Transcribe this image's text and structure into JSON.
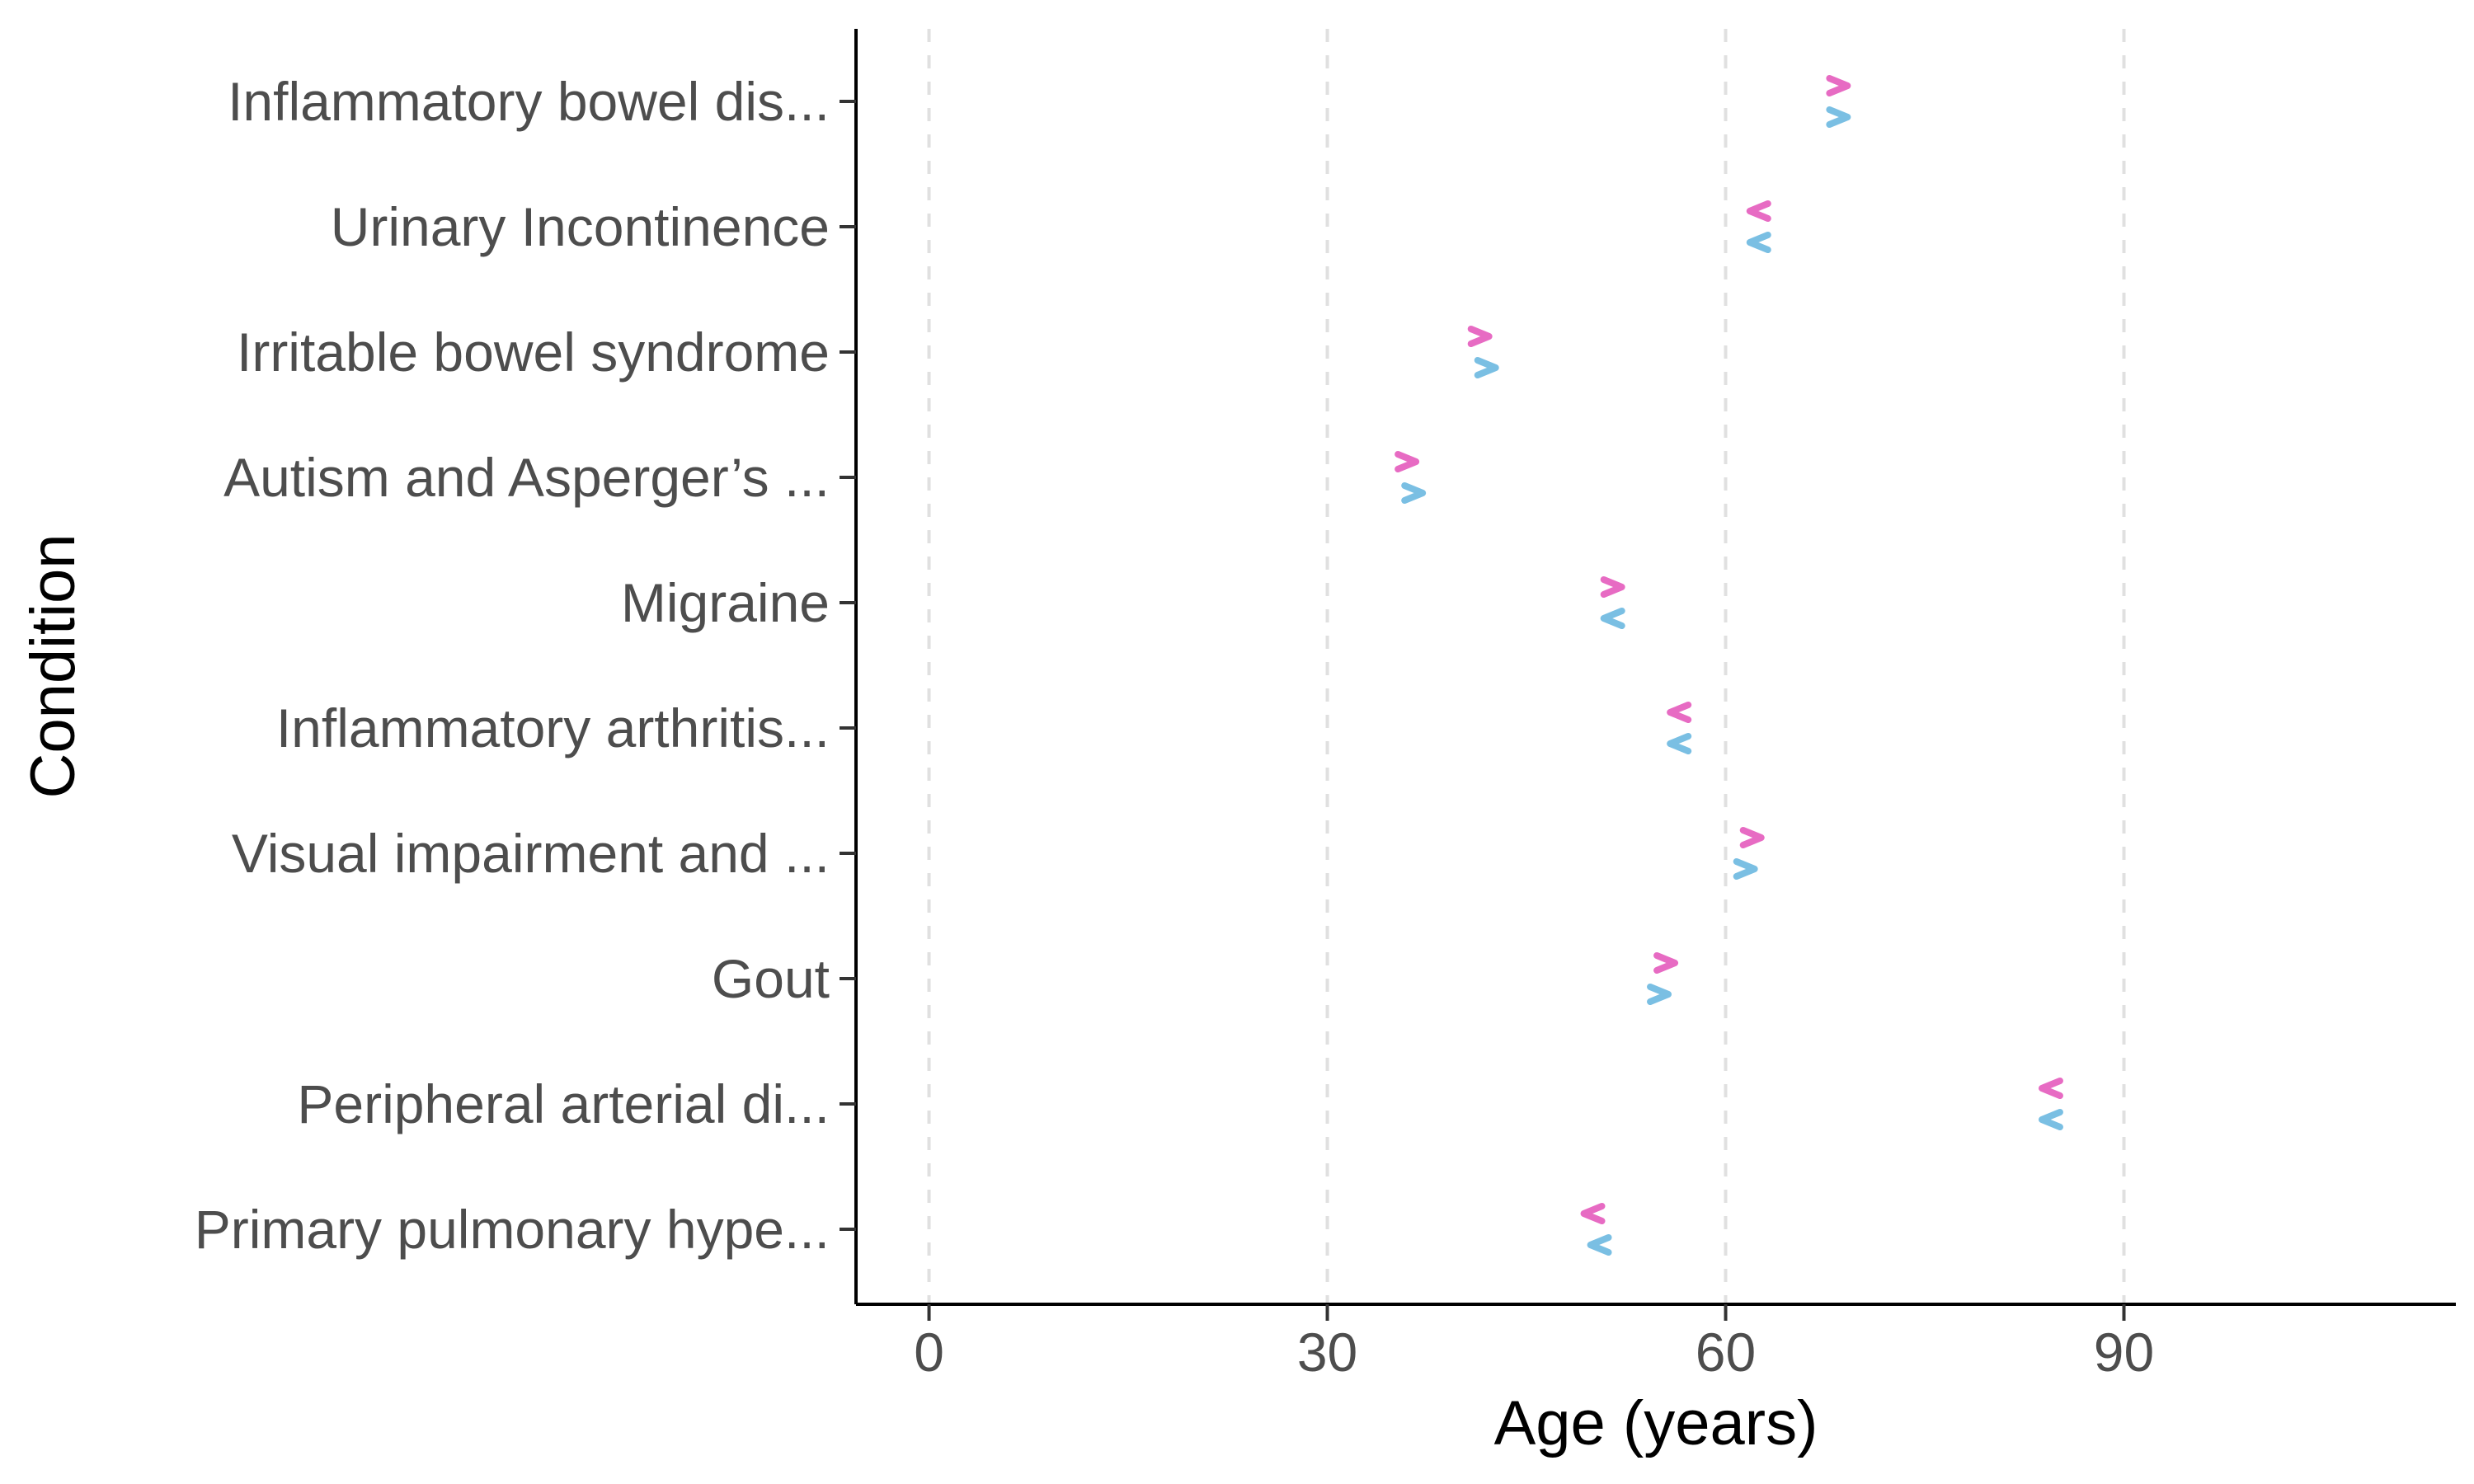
{
  "chart_data": {
    "type": "scatter",
    "xlabel": "Age (years)",
    "ylabel": "Condition",
    "xlim": [
      -5.5,
      115
    ],
    "x_ticks": [
      0,
      30,
      60,
      90
    ],
    "grid": {
      "x_major": true,
      "style": "dashed",
      "y": false
    },
    "legend": "none",
    "categories": [
      "Inflammatory bowel dis...",
      "Urinary Incontinence",
      "Irritable bowel syndrome",
      "Autism and Asperger’s ...",
      "Migraine",
      "Inflammatory arthritis...",
      "Visual impairment and ...",
      "Gout",
      "Peripheral arterial di...",
      "Primary pulmonary hype..."
    ],
    "series": [
      {
        "color": "#E76BC3",
        "position": "upper",
        "values": [
          68.5,
          62.5,
          41.5,
          36,
          51.5,
          56.5,
          62,
          55.5,
          84.5,
          50
        ],
        "directions": [
          "right",
          "left",
          "right",
          "right",
          "right",
          "left",
          "right",
          "right",
          "left",
          "left"
        ]
      },
      {
        "color": "#7ABFE3",
        "position": "lower",
        "values": [
          68.5,
          62.5,
          42,
          36.5,
          51.5,
          56.5,
          61.5,
          55,
          84.5,
          50.5
        ],
        "directions": [
          "right",
          "left",
          "right",
          "right",
          "left",
          "left",
          "right",
          "right",
          "left",
          "left"
        ]
      }
    ]
  }
}
